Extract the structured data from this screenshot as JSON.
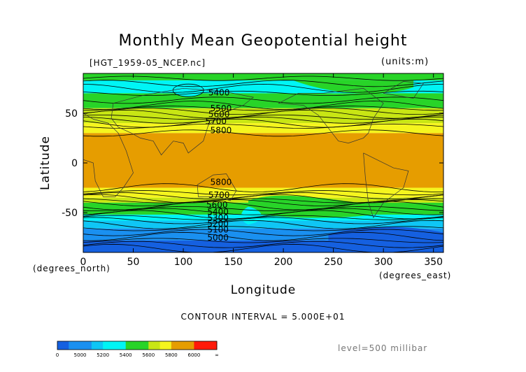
{
  "title": "Monthly Mean Geopotential height",
  "file_label": "[HGT_1959-05_NCEP.nc]",
  "units_label": "(units:m)",
  "contour_interval": "CONTOUR INTERVAL = 5.000E+01",
  "level_label": "level=500 millibar",
  "colors": {
    "lt5000": "#1560e0",
    "5000": "#1a90f0",
    "5200": "#0fc6f5",
    "5400": "#00f5f5",
    "5600": "#28d428",
    "5700": "#c8e614",
    "5800": "#f5f51e",
    "5850": "#e69d00",
    "6000": "#ff1a0a"
  },
  "colorbar": {
    "ticks": [
      "0",
      "5000",
      "5200",
      "5400",
      "5600",
      "5800",
      "6000",
      "∞"
    ]
  },
  "chart_data": {
    "type": "heatmap",
    "title": "Monthly Mean Geopotential height",
    "variable": "HGT",
    "units": "m",
    "level": "500 millibar",
    "xlabel": "Longitude",
    "ylabel": "Latitude",
    "xunit_label": "(degrees_east)",
    "yunit_label": "(degrees_north)",
    "xlim": [
      0,
      360
    ],
    "ylim": [
      -90,
      90
    ],
    "xticks": [
      0,
      50,
      100,
      150,
      200,
      250,
      300,
      350
    ],
    "yticks": [
      50,
      0,
      -50
    ],
    "contour_interval": 50,
    "contour_labels": [
      {
        "lon": 125,
        "lat": 68,
        "value": "5400"
      },
      {
        "lon": 127,
        "lat": 52,
        "value": "5500"
      },
      {
        "lon": 125,
        "lat": 46,
        "value": "5600"
      },
      {
        "lon": 122,
        "lat": 39,
        "value": "5700"
      },
      {
        "lon": 127,
        "lat": 30,
        "value": "5800"
      },
      {
        "lon": 127,
        "lat": -22,
        "value": "5800"
      },
      {
        "lon": 125,
        "lat": -35,
        "value": "5700"
      },
      {
        "lon": 123,
        "lat": -45,
        "value": "5600"
      },
      {
        "lon": 124,
        "lat": -52,
        "value": "5400"
      },
      {
        "lon": 124,
        "lat": -58,
        "value": "5300"
      },
      {
        "lon": 124,
        "lat": -64,
        "value": "5200"
      },
      {
        "lon": 124,
        "lat": -70,
        "value": "5100"
      },
      {
        "lon": 124,
        "lat": -78,
        "value": "5000"
      }
    ],
    "latitude_bands": [
      {
        "lat_from": 90,
        "lat_to": 83,
        "value": 5550
      },
      {
        "lat_from": 83,
        "lat_to": 70,
        "value": 5450
      },
      {
        "lat_from": 70,
        "lat_to": 55,
        "value": 5550
      },
      {
        "lat_from": 55,
        "lat_to": 40,
        "value": 5700
      },
      {
        "lat_from": 40,
        "lat_to": 30,
        "value": 5800
      },
      {
        "lat_from": 30,
        "lat_to": -25,
        "value": 5860
      },
      {
        "lat_from": -25,
        "lat_to": -35,
        "value": 5800
      },
      {
        "lat_from": -35,
        "lat_to": -40,
        "value": 5700
      },
      {
        "lat_from": -40,
        "lat_to": -52,
        "value": 5600
      },
      {
        "lat_from": -52,
        "lat_to": -58,
        "value": 5450
      },
      {
        "lat_from": -58,
        "lat_to": -66,
        "value": 5250
      },
      {
        "lat_from": -66,
        "lat_to": -78,
        "value": 5100
      },
      {
        "lat_from": -78,
        "lat_to": -90,
        "value": 4950
      }
    ]
  }
}
